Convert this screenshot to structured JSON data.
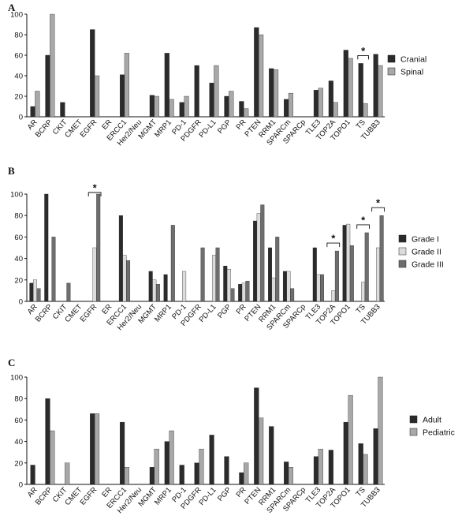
{
  "chart_data": [
    {
      "type": "bar",
      "panel": "A",
      "categories": [
        "AR",
        "BCRP",
        "CKIT",
        "CMET",
        "EGFR",
        "ER",
        "ERCC1",
        "Her2/Neu",
        "MGMT",
        "MRP1",
        "PD-1",
        "PDGFR",
        "PD-L1",
        "PGP",
        "PR",
        "PTEN",
        "RRM1",
        "SPARCm",
        "SPARCp",
        "TLE3",
        "TOP2A",
        "TOPO1",
        "TS",
        "TUBB3"
      ],
      "series": [
        {
          "name": "Cranial",
          "color": "#2b2b2b",
          "values": [
            10,
            60,
            14,
            0,
            85,
            0,
            41,
            0,
            21,
            62,
            14,
            50,
            33,
            20,
            15,
            87,
            47,
            17,
            0,
            26,
            35,
            65,
            52,
            61
          ]
        },
        {
          "name": "Spinal",
          "color": "#a8a8a8",
          "values": [
            25,
            100,
            0,
            0,
            40,
            0,
            62,
            0,
            20,
            17,
            20,
            0,
            50,
            25,
            8,
            80,
            46,
            23,
            0,
            28,
            14,
            57,
            13,
            50
          ]
        }
      ],
      "ylim": [
        0,
        100
      ],
      "yticks": [
        "0",
        "20",
        "40",
        "60",
        "80",
        "100"
      ],
      "grid": false,
      "legend_position": "right",
      "significance": [
        {
          "categories": [
            "TS"
          ],
          "label": "*"
        }
      ]
    },
    {
      "type": "bar",
      "panel": "B",
      "categories": [
        "AR",
        "BCRP",
        "CKIT",
        "CMET",
        "EGFR",
        "ER",
        "ERCC1",
        "Her2/Neu",
        "MGMT",
        "MRP1",
        "PD-1",
        "PDGFR",
        "PD-L1",
        "PGP",
        "PR",
        "PTEN",
        "RRM1",
        "SPARCm",
        "SPARCp",
        "TLE3",
        "TOP2A",
        "TOPO1",
        "TS",
        "TUBB3"
      ],
      "series": [
        {
          "name": "Grade I",
          "color": "#2b2b2b",
          "values": [
            17,
            100,
            0,
            0,
            0,
            0,
            80,
            0,
            28,
            25,
            0,
            0,
            0,
            33,
            16,
            75,
            50,
            28,
            0,
            50,
            0,
            71,
            0,
            0
          ]
        },
        {
          "name": "Grade II",
          "color": "#dcdcdc",
          "values": [
            20,
            0,
            0,
            0,
            50,
            0,
            43,
            0,
            20,
            0,
            28,
            0,
            43,
            30,
            17,
            82,
            22,
            28,
            0,
            25,
            10,
            72,
            18,
            50
          ]
        },
        {
          "name": "Grade III",
          "color": "#6e6e6e",
          "values": [
            12,
            60,
            17,
            0,
            100,
            0,
            38,
            0,
            16,
            71,
            0,
            50,
            50,
            12,
            19,
            90,
            60,
            12,
            0,
            25,
            47,
            52,
            64,
            80
          ]
        }
      ],
      "ylim": [
        0,
        100
      ],
      "yticks": [
        "0",
        "20",
        "40",
        "60",
        "80",
        "100"
      ],
      "grid": false,
      "legend_position": "right",
      "significance": [
        {
          "categories": [
            "EGFR"
          ],
          "label": "*"
        },
        {
          "categories": [
            "TOP2A"
          ],
          "label": "*"
        },
        {
          "categories": [
            "TS"
          ],
          "label": "*"
        },
        {
          "categories": [
            "TUBB3"
          ],
          "label": "*"
        }
      ]
    },
    {
      "type": "bar",
      "panel": "C",
      "categories": [
        "AR",
        "BCRP",
        "CKIT",
        "CMET",
        "EGFR",
        "ER",
        "ERCC1",
        "Her2/Neu",
        "MGMT",
        "MRP1",
        "PD-1",
        "PDGFR",
        "PD-L1",
        "PGP",
        "PR",
        "PTEN",
        "RRM1",
        "SPARCm",
        "SPARCp",
        "TLE3",
        "TOP2A",
        "TOPO1",
        "TS",
        "TUBB3"
      ],
      "series": [
        {
          "name": "Adult",
          "color": "#2b2b2b",
          "values": [
            18,
            80,
            0,
            0,
            66,
            0,
            58,
            0,
            16,
            40,
            18,
            20,
            46,
            26,
            11,
            90,
            54,
            21,
            0,
            26,
            32,
            58,
            38,
            52
          ]
        },
        {
          "name": "Pediatric",
          "color": "#a8a8a8",
          "values": [
            0,
            50,
            20,
            0,
            66,
            0,
            16,
            0,
            33,
            50,
            0,
            33,
            0,
            0,
            20,
            62,
            0,
            16,
            0,
            33,
            0,
            83,
            28,
            100
          ]
        }
      ],
      "ylim": [
        0,
        100
      ],
      "yticks": [
        "0",
        "20",
        "40",
        "60",
        "80",
        "100"
      ],
      "grid": false,
      "legend_position": "right",
      "significance": []
    }
  ]
}
